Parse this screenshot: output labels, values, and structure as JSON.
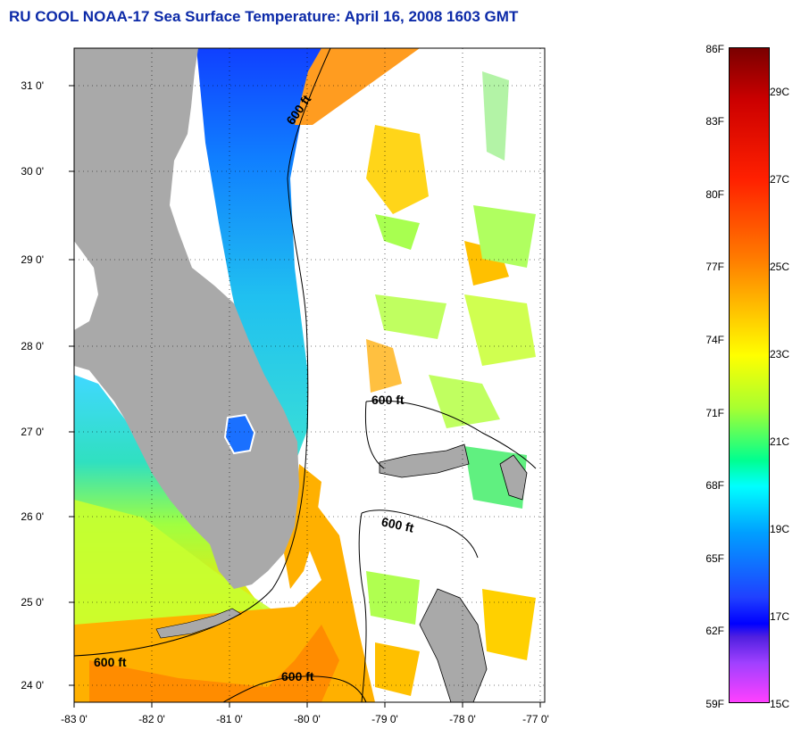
{
  "title": "RU COOL  NOAA-17  Sea Surface Temperature:  April 16, 2008 1603 GMT",
  "map": {
    "lat_ticks": [
      "31 0'",
      "30 0'",
      "29 0'",
      "28 0'",
      "27 0'",
      "26 0'",
      "25 0'",
      "24 0'"
    ],
    "lon_ticks": [
      "-83 0'",
      "-82 0'",
      "-81 0'",
      "-80 0'",
      "-79 0'",
      "-78 0'",
      "-77 0'"
    ],
    "contour_labels": [
      "600 ft",
      "600 ft",
      "600 ft",
      "600 ft",
      "600 ft"
    ],
    "colors": {
      "land": "#a9a9a9",
      "cloud": "#ffffff",
      "cool_water": "#1060ff",
      "mid_water": "#40e0e0",
      "warm_water": "#ffe000",
      "hot_water": "#ff9000"
    }
  },
  "colorbar": {
    "f_labels": [
      "86F",
      "83F",
      "80F",
      "77F",
      "74F",
      "71F",
      "68F",
      "65F",
      "62F",
      "59F"
    ],
    "c_labels": [
      "29C",
      "27C",
      "25C",
      "23C",
      "21C",
      "19C",
      "17C",
      "15C"
    ],
    "range_f": [
      59,
      86
    ],
    "range_c": [
      15,
      30
    ]
  }
}
